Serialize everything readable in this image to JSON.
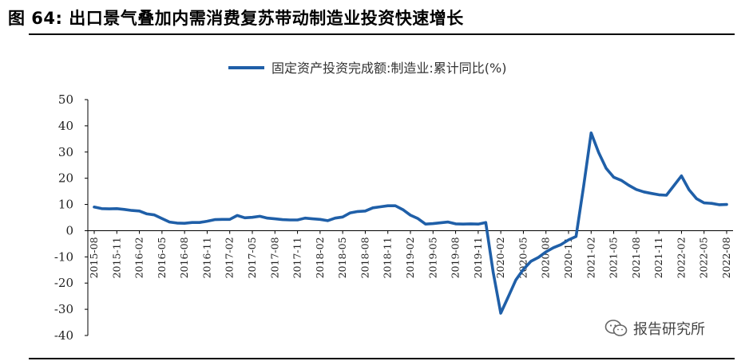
{
  "figure": {
    "title": "图  64:  出口景气叠加内需消费复苏带动制造业投资快速增长"
  },
  "watermark": {
    "text": "报告研究所",
    "icon": "wechat-icon"
  },
  "colors": {
    "series": "#1f5fa8",
    "axis": "#000000",
    "text": "#222222"
  },
  "chart_data": {
    "type": "line",
    "title": "",
    "xlabel": "",
    "ylabel": "",
    "ylim": [
      -40,
      50
    ],
    "yticks": [
      -40,
      -30,
      -20,
      -10,
      0,
      10,
      20,
      30,
      40,
      50
    ],
    "grid": false,
    "legend_position": "top-center",
    "xtick_labels": [
      "2015-08",
      "2015-11",
      "2016-02",
      "2016-05",
      "2016-08",
      "2016-11",
      "2017-02",
      "2017-05",
      "2017-08",
      "2017-11",
      "2018-02",
      "2018-05",
      "2018-08",
      "2018-11",
      "2019-02",
      "2019-05",
      "2019-08",
      "2019-11",
      "2020-02",
      "2020-05",
      "2020-08",
      "2020-11",
      "2021-02",
      "2021-05",
      "2021-08",
      "2021-11",
      "2022-02",
      "2022-05",
      "2022-08"
    ],
    "series": [
      {
        "name": "固定资产投资完成额:制造业:累计同比(%)",
        "x": [
          "2015-08",
          "2015-09",
          "2015-10",
          "2015-11",
          "2015-12",
          "2016-01",
          "2016-02",
          "2016-03",
          "2016-04",
          "2016-05",
          "2016-06",
          "2016-07",
          "2016-08",
          "2016-09",
          "2016-10",
          "2016-11",
          "2016-12",
          "2017-01",
          "2017-02",
          "2017-03",
          "2017-04",
          "2017-05",
          "2017-06",
          "2017-07",
          "2017-08",
          "2017-09",
          "2017-10",
          "2017-11",
          "2017-12",
          "2018-01",
          "2018-02",
          "2018-03",
          "2018-04",
          "2018-05",
          "2018-06",
          "2018-07",
          "2018-08",
          "2018-09",
          "2018-10",
          "2018-11",
          "2018-12",
          "2019-01",
          "2019-02",
          "2019-03",
          "2019-04",
          "2019-05",
          "2019-06",
          "2019-07",
          "2019-08",
          "2019-09",
          "2019-10",
          "2019-11",
          "2019-12",
          "2020-01",
          "2020-02",
          "2020-03",
          "2020-04",
          "2020-05",
          "2020-06",
          "2020-07",
          "2020-08",
          "2020-09",
          "2020-10",
          "2020-11",
          "2020-12",
          "2021-01",
          "2021-02",
          "2021-03",
          "2021-04",
          "2021-05",
          "2021-06",
          "2021-07",
          "2021-08",
          "2021-09",
          "2021-10",
          "2021-11",
          "2021-12",
          "2022-01",
          "2022-02",
          "2022-03",
          "2022-04",
          "2022-05",
          "2022-06",
          "2022-07",
          "2022-08"
        ],
        "values": [
          9.0,
          8.4,
          8.3,
          8.4,
          8.1,
          7.7,
          7.5,
          6.4,
          6.0,
          4.6,
          3.3,
          2.9,
          2.8,
          3.1,
          3.1,
          3.6,
          4.2,
          4.3,
          4.3,
          5.8,
          4.9,
          5.1,
          5.5,
          4.8,
          4.5,
          4.2,
          4.1,
          4.1,
          4.8,
          4.5,
          4.3,
          3.8,
          4.8,
          5.2,
          6.8,
          7.3,
          7.5,
          8.7,
          9.1,
          9.5,
          9.5,
          8.0,
          5.9,
          4.6,
          2.5,
          2.7,
          3.0,
          3.3,
          2.6,
          2.5,
          2.6,
          2.5,
          3.1,
          -16.0,
          -31.5,
          -25.2,
          -18.8,
          -14.8,
          -11.7,
          -10.2,
          -8.1,
          -6.5,
          -5.3,
          -3.5,
          -2.2,
          17.0,
          37.3,
          29.8,
          23.8,
          20.4,
          19.2,
          17.3,
          15.7,
          14.8,
          14.2,
          13.7,
          13.5,
          17.2,
          20.9,
          15.6,
          12.2,
          10.6,
          10.4,
          9.9,
          10.0
        ]
      }
    ]
  }
}
